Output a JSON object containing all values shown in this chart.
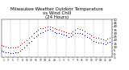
{
  "title": "Milwaukee Weather Outdoor Temperature\nvs Wind Chill\n(24 Hours)",
  "title_fontsize": 4.0,
  "bg_color": "#ffffff",
  "plot_bg_color": "#ffffff",
  "grid_color": "#888888",
  "ylim": [
    -5,
    50
  ],
  "xlim": [
    0,
    48
  ],
  "ytick_values": [
    50,
    45,
    40,
    35,
    30,
    25,
    20,
    15,
    10,
    5,
    0,
    -5
  ],
  "ytick_labels": [
    "50",
    "45",
    "40",
    "35",
    "30",
    "25",
    "20",
    "15",
    "10",
    "5",
    "0",
    "-5"
  ],
  "vgrid_positions": [
    4,
    8,
    12,
    16,
    20,
    24,
    28,
    32,
    36,
    40,
    44,
    48
  ],
  "temp_color": "#cc0000",
  "windchill_color": "#0000bb",
  "marker_size": 0.8,
  "temp_x": [
    0,
    1,
    2,
    3,
    4,
    5,
    6,
    7,
    8,
    9,
    10,
    11,
    12,
    13,
    14,
    15,
    16,
    17,
    18,
    19,
    20,
    21,
    22,
    23,
    24,
    25,
    26,
    27,
    28,
    29,
    30,
    31,
    32,
    33,
    34,
    35,
    36,
    37,
    38,
    39,
    40,
    41,
    42,
    43,
    44,
    45,
    46,
    47
  ],
  "temp_y": [
    13,
    12,
    11,
    10,
    9,
    9,
    10,
    11,
    13,
    15,
    18,
    20,
    23,
    26,
    30,
    33,
    35,
    37,
    38,
    39,
    40,
    40,
    39,
    37,
    36,
    35,
    34,
    33,
    32,
    30,
    31,
    33,
    35,
    37,
    36,
    35,
    33,
    31,
    29,
    27,
    25,
    24,
    23,
    22,
    21,
    20,
    22,
    24
  ],
  "wc_x": [
    0,
    1,
    2,
    3,
    4,
    5,
    6,
    7,
    8,
    9,
    10,
    11,
    12,
    13,
    14,
    15,
    16,
    17,
    18,
    19,
    20,
    21,
    22,
    23,
    24,
    25,
    26,
    27,
    28,
    29,
    30,
    31,
    32,
    33,
    34,
    35,
    36,
    37,
    38,
    39,
    40,
    41,
    42,
    43,
    44,
    45,
    46,
    47
  ],
  "wc_y": [
    5,
    4,
    3,
    2,
    1,
    1,
    2,
    3,
    5,
    7,
    10,
    13,
    16,
    19,
    23,
    26,
    28,
    30,
    32,
    34,
    35,
    36,
    34,
    32,
    31,
    30,
    29,
    28,
    27,
    25,
    26,
    28,
    30,
    31,
    30,
    29,
    27,
    25,
    23,
    21,
    19,
    18,
    17,
    16,
    15,
    14,
    16,
    18
  ],
  "xtick_values": [
    1,
    3,
    5,
    7,
    9,
    11,
    13,
    15,
    17,
    19,
    21,
    23,
    25,
    27,
    29,
    31,
    33,
    35,
    37,
    39,
    41,
    43,
    45,
    47
  ],
  "xtick_labels": [
    "1",
    "3",
    "5",
    "7",
    "9",
    "11",
    "13",
    "15",
    "17",
    "19",
    "21",
    "23",
    "1",
    "3",
    "5",
    "7",
    "9",
    "11",
    "13",
    "15",
    "17",
    "19",
    "21",
    "23"
  ]
}
